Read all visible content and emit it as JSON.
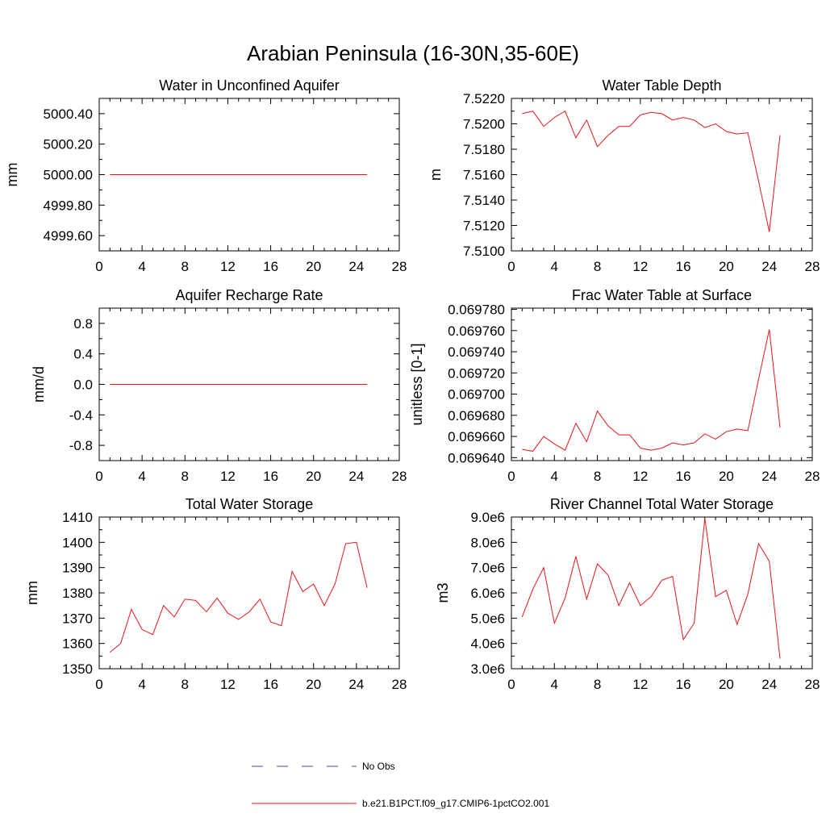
{
  "figure": {
    "title": "Arabian Peninsula (16-30N,35-60E)"
  },
  "legend": {
    "entries": [
      {
        "label": "No Obs",
        "color": "#4a4aa8",
        "style": "dashed"
      },
      {
        "label": "b.e21.B1PCT.f09_g17.CMIP6-1pctCO2.001",
        "color": "#e8151b",
        "style": "solid"
      }
    ]
  },
  "colors": {
    "series": "#e8151b",
    "axis": "#000000"
  },
  "chart_data": [
    {
      "type": "line",
      "title": "Water in Unconfined Aquifer",
      "ylabel": "mm",
      "xlim": [
        0,
        28
      ],
      "ylim": [
        4999.5,
        5000.5
      ],
      "xticks": [
        0,
        4,
        8,
        12,
        16,
        20,
        24,
        28
      ],
      "xtick_labels": [
        "0",
        "4",
        "8",
        "12",
        "16",
        "20",
        "24",
        "28"
      ],
      "yticks": [
        4999.6,
        4999.8,
        5000.0,
        5000.2,
        5000.4
      ],
      "ytick_labels": [
        "4999.60",
        "4999.80",
        "5000.00",
        "5000.20",
        "5000.40"
      ],
      "x": [
        1,
        2,
        3,
        4,
        5,
        6,
        7,
        8,
        9,
        10,
        11,
        12,
        13,
        14,
        15,
        16,
        17,
        18,
        19,
        20,
        21,
        22,
        23,
        24,
        25
      ],
      "series": [
        {
          "name": "b.e21.B1PCT.f09_g17.CMIP6-1pctCO2.001",
          "values": [
            5000,
            5000,
            5000,
            5000,
            5000,
            5000,
            5000,
            5000,
            5000,
            5000,
            5000,
            5000,
            5000,
            5000,
            5000,
            5000,
            5000,
            5000,
            5000,
            5000,
            5000,
            5000,
            5000,
            5000,
            5000
          ]
        }
      ]
    },
    {
      "type": "line",
      "title": "Water Table Depth",
      "ylabel": "m",
      "xlim": [
        0,
        28
      ],
      "ylim": [
        7.51,
        7.522
      ],
      "xticks": [
        0,
        4,
        8,
        12,
        16,
        20,
        24,
        28
      ],
      "xtick_labels": [
        "0",
        "4",
        "8",
        "12",
        "16",
        "20",
        "24",
        "28"
      ],
      "yticks": [
        7.51,
        7.512,
        7.514,
        7.516,
        7.518,
        7.52,
        7.522
      ],
      "ytick_labels": [
        "7.5100",
        "7.5120",
        "7.5140",
        "7.5160",
        "7.5180",
        "7.5200",
        "7.5220"
      ],
      "x": [
        1,
        2,
        3,
        4,
        5,
        6,
        7,
        8,
        9,
        10,
        11,
        12,
        13,
        14,
        15,
        16,
        17,
        18,
        19,
        20,
        21,
        22,
        23,
        24,
        25
      ],
      "series": [
        {
          "name": "b.e21.B1PCT.f09_g17.CMIP6-1pctCO2.001",
          "values": [
            7.5208,
            7.521,
            7.5198,
            7.5205,
            7.521,
            7.5189,
            7.5203,
            7.5182,
            7.5191,
            7.5198,
            7.5198,
            7.5207,
            7.5209,
            7.5208,
            7.5203,
            7.5205,
            7.5203,
            7.5197,
            7.52,
            7.5194,
            7.5192,
            7.5193,
            7.5155,
            7.5115,
            7.5191
          ]
        }
      ]
    },
    {
      "type": "line",
      "title": "Aquifer Recharge Rate",
      "ylabel": "mm/d",
      "xlim": [
        0,
        28
      ],
      "ylim": [
        -1,
        1
      ],
      "xticks": [
        0,
        4,
        8,
        12,
        16,
        20,
        24,
        28
      ],
      "xtick_labels": [
        "0",
        "4",
        "8",
        "12",
        "16",
        "20",
        "24",
        "28"
      ],
      "yticks": [
        -0.8,
        -0.4,
        0.0,
        0.4,
        0.8
      ],
      "ytick_labels": [
        "-0.8",
        "-0.4",
        "0.0",
        "0.4",
        "0.8"
      ],
      "x": [
        1,
        2,
        3,
        4,
        5,
        6,
        7,
        8,
        9,
        10,
        11,
        12,
        13,
        14,
        15,
        16,
        17,
        18,
        19,
        20,
        21,
        22,
        23,
        24,
        25
      ],
      "series": [
        {
          "name": "b.e21.B1PCT.f09_g17.CMIP6-1pctCO2.001",
          "values": [
            0,
            0,
            0,
            0,
            0,
            0,
            0,
            0,
            0,
            0,
            0,
            0,
            0,
            0,
            0,
            0,
            0,
            0,
            0,
            0,
            0,
            0,
            0,
            0,
            0
          ]
        }
      ]
    },
    {
      "type": "line",
      "title": "Frac Water Table at Surface",
      "ylabel": "unitless [0-1]",
      "xlim": [
        0,
        28
      ],
      "ylim": [
        0.0696372,
        0.0697812
      ],
      "xticks": [
        0,
        4,
        8,
        12,
        16,
        20,
        24,
        28
      ],
      "xtick_labels": [
        "0",
        "4",
        "8",
        "12",
        "16",
        "20",
        "24",
        "28"
      ],
      "yticks": [
        0.06964,
        0.06966,
        0.06968,
        0.0697,
        0.06972,
        0.06974,
        0.06976,
        0.06978
      ],
      "ytick_labels": [
        "0.069640",
        "0.069660",
        "0.069680",
        "0.069700",
        "0.069720",
        "0.069740",
        "0.069760",
        "0.069780"
      ],
      "x": [
        1,
        2,
        3,
        4,
        5,
        6,
        7,
        8,
        9,
        10,
        11,
        12,
        13,
        14,
        15,
        16,
        17,
        18,
        19,
        20,
        21,
        22,
        23,
        24,
        25
      ],
      "series": [
        {
          "name": "b.e21.B1PCT.f09_g17.CMIP6-1pctCO2.001",
          "values": [
            0.0696478,
            0.069646,
            0.06966,
            0.069653,
            0.069647,
            0.0696725,
            0.069655,
            0.069684,
            0.06967,
            0.0696615,
            0.0696615,
            0.069649,
            0.069647,
            0.069649,
            0.069654,
            0.069652,
            0.069654,
            0.0696625,
            0.0696575,
            0.0696645,
            0.069667,
            0.0696655,
            0.069714,
            0.069761,
            0.0696685
          ]
        }
      ]
    },
    {
      "type": "line",
      "title": "Total Water Storage",
      "ylabel": "mm",
      "xlim": [
        0,
        28
      ],
      "ylim": [
        1350,
        1410
      ],
      "xticks": [
        0,
        4,
        8,
        12,
        16,
        20,
        24,
        28
      ],
      "xtick_labels": [
        "0",
        "4",
        "8",
        "12",
        "16",
        "20",
        "24",
        "28"
      ],
      "yticks": [
        1350,
        1360,
        1370,
        1380,
        1390,
        1400,
        1410
      ],
      "ytick_labels": [
        "1350",
        "1360",
        "1370",
        "1380",
        "1390",
        "1400",
        "1410"
      ],
      "x": [
        1,
        2,
        3,
        4,
        5,
        6,
        7,
        8,
        9,
        10,
        11,
        12,
        13,
        14,
        15,
        16,
        17,
        18,
        19,
        20,
        21,
        22,
        23,
        24,
        25
      ],
      "series": [
        {
          "name": "b.e21.B1PCT.f09_g17.CMIP6-1pctCO2.001",
          "values": [
            1356.5,
            1360.0,
            1373.5,
            1365.5,
            1363.5,
            1375.0,
            1370.5,
            1377.5,
            1377.0,
            1372.5,
            1378.0,
            1372.0,
            1369.5,
            1372.5,
            1377.5,
            1368.5,
            1367.0,
            1388.5,
            1380.5,
            1383.5,
            1375.0,
            1383.5,
            1399.5,
            1400.0,
            1382.0
          ]
        }
      ]
    },
    {
      "type": "line",
      "title": "River Channel Total Water Storage",
      "ylabel": "m3",
      "xlim": [
        0,
        28
      ],
      "ylim": [
        3000000,
        9000000
      ],
      "xticks": [
        0,
        4,
        8,
        12,
        16,
        20,
        24,
        28
      ],
      "xtick_labels": [
        "0",
        "4",
        "8",
        "12",
        "16",
        "20",
        "24",
        "28"
      ],
      "yticks": [
        3000000,
        4000000,
        5000000,
        6000000,
        7000000,
        8000000,
        9000000
      ],
      "ytick_labels": [
        "3.0e6",
        "4.0e6",
        "5.0e6",
        "6.0e6",
        "7.0e6",
        "8.0e6",
        "9.0e6"
      ],
      "x": [
        1,
        2,
        3,
        4,
        5,
        6,
        7,
        8,
        9,
        10,
        11,
        12,
        13,
        14,
        15,
        16,
        17,
        18,
        19,
        20,
        21,
        22,
        23,
        24,
        25
      ],
      "series": [
        {
          "name": "b.e21.B1PCT.f09_g17.CMIP6-1pctCO2.001",
          "values": [
            5050000,
            6150000,
            7000000,
            4800000,
            5800000,
            7450000,
            5750000,
            7150000,
            6700000,
            5500000,
            6400000,
            5500000,
            5850000,
            6500000,
            6650000,
            4150000,
            4800000,
            8950000,
            5850000,
            6100000,
            4750000,
            5950000,
            7950000,
            7250000,
            3400000
          ]
        }
      ]
    }
  ]
}
